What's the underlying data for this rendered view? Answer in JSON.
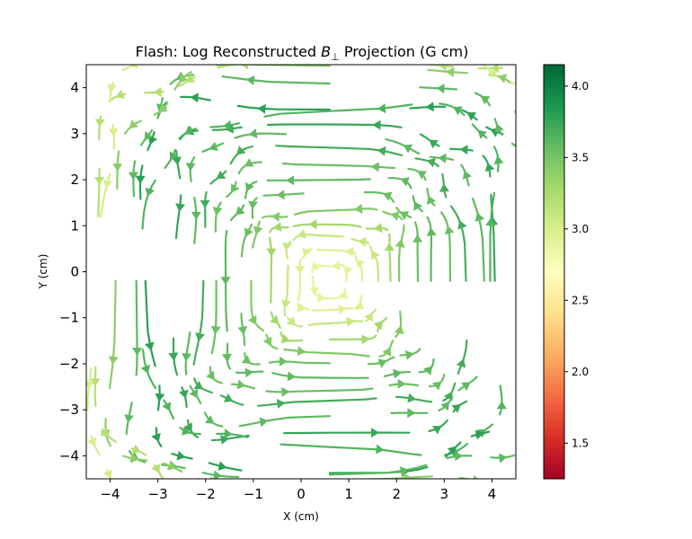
{
  "chart_data": {
    "type": "streamplot",
    "title": {
      "prefix": "Flash: Log Reconstructed ",
      "symbol": "B",
      "subscript": "⊥",
      "suffix": " Projection (G cm)"
    },
    "xlabel": "X (cm)",
    "ylabel": "Y (cm)",
    "xlim": [
      -4.5,
      4.5
    ],
    "ylim": [
      -4.5,
      4.5
    ],
    "xticks": [
      -4,
      -3,
      -2,
      -1,
      0,
      1,
      2,
      3,
      4
    ],
    "yticks": [
      -4,
      -3,
      -2,
      -1,
      0,
      1,
      2,
      3,
      4
    ],
    "grid": false,
    "colorbar": {
      "colormap": "RdYlGn",
      "range": [
        1.25,
        4.15
      ],
      "ticks": [
        1.5,
        2.0,
        2.5,
        3.0,
        3.5,
        4.0
      ],
      "stops": [
        "#a50026",
        "#d73027",
        "#f46d43",
        "#fdae61",
        "#fee08b",
        "#ffffbf",
        "#d9ef8b",
        "#a6d96a",
        "#66bd63",
        "#1a9850",
        "#006837"
      ]
    },
    "field": {
      "description": "nested vortex circulation",
      "centers": [
        {
          "x": 0.6,
          "y": -0.2,
          "strength": 1.0
        },
        {
          "x": -2.4,
          "y": 1.3,
          "strength": 0.25
        }
      ],
      "typical_log_magnitude": 3.5
    },
    "streamlines": [
      {
        "r": 0.35,
        "value": 2.9
      },
      {
        "r": 0.65,
        "value": 2.95
      },
      {
        "r": 0.95,
        "value": 3.1
      },
      {
        "r": 1.25,
        "value": 3.3
      },
      {
        "r": 1.55,
        "value": 3.45
      },
      {
        "r": 1.85,
        "value": 3.55
      },
      {
        "r": 2.15,
        "value": 3.6
      },
      {
        "r": 2.45,
        "value": 3.55
      },
      {
        "r": 2.75,
        "value": 3.7
      },
      {
        "r": 3.05,
        "value": 3.6
      },
      {
        "r": 3.35,
        "value": 3.75
      },
      {
        "r": 3.65,
        "value": 3.65
      },
      {
        "r": 3.95,
        "value": 3.8
      },
      {
        "r": 4.25,
        "value": 3.6
      },
      {
        "r": 4.5,
        "value": 3.4
      },
      {
        "r": 4.75,
        "value": 3.2
      },
      {
        "r": 5.0,
        "value": 3.0
      }
    ]
  }
}
